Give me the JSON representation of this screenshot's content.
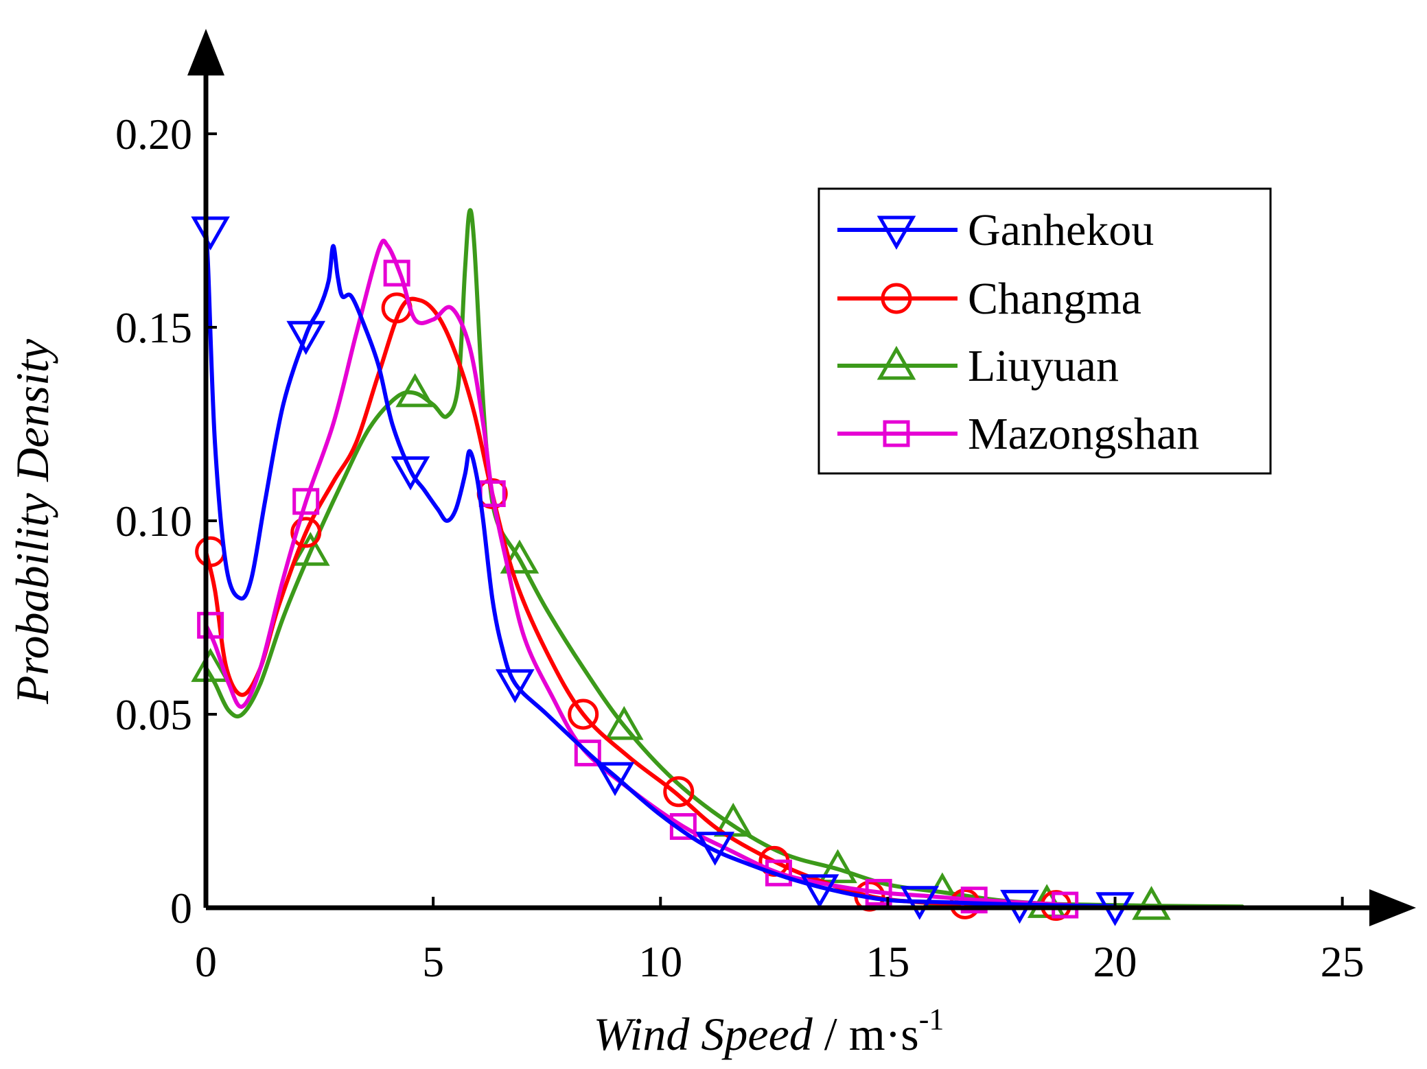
{
  "chart_data": {
    "type": "line",
    "title": "",
    "xlabel": "Wind Speed / m·s-1",
    "xlabel_parts": {
      "italic": "Wind Speed",
      "unit": " / m·s",
      "superscript": "-1"
    },
    "ylabel": "Probability Density",
    "xlim": [
      0,
      26.5
    ],
    "ylim": [
      0,
      0.225
    ],
    "xticks": [
      0,
      5,
      10,
      15,
      20,
      25
    ],
    "xtick_labels": [
      "0",
      "5",
      "10",
      "15",
      "20",
      "25"
    ],
    "yticks": [
      0,
      0.05,
      0.1,
      0.15,
      0.2
    ],
    "ytick_labels": [
      "0",
      "0.05",
      "0.10",
      "0.15",
      "0.20"
    ],
    "grid": false,
    "legend_position": "top-right",
    "series": [
      {
        "name": "Ganhekou",
        "color": "#0000ff",
        "marker": "triangle-down",
        "curve": [
          [
            0,
            0.175
          ],
          [
            0.05,
            0.165
          ],
          [
            0.2,
            0.12
          ],
          [
            0.45,
            0.088
          ],
          [
            0.75,
            0.08
          ],
          [
            1.0,
            0.085
          ],
          [
            1.3,
            0.105
          ],
          [
            1.7,
            0.13
          ],
          [
            2.2,
            0.148
          ],
          [
            2.5,
            0.155
          ],
          [
            2.7,
            0.162
          ],
          [
            2.8,
            0.171
          ],
          [
            2.9,
            0.163
          ],
          [
            3.0,
            0.158
          ],
          [
            3.2,
            0.158
          ],
          [
            3.5,
            0.15
          ],
          [
            3.8,
            0.14
          ],
          [
            4.1,
            0.125
          ],
          [
            4.5,
            0.113
          ],
          [
            4.8,
            0.108
          ],
          [
            5.1,
            0.103
          ],
          [
            5.3,
            0.1
          ],
          [
            5.5,
            0.103
          ],
          [
            5.7,
            0.112
          ],
          [
            5.8,
            0.118
          ],
          [
            5.95,
            0.112
          ],
          [
            6.1,
            0.1
          ],
          [
            6.3,
            0.08
          ],
          [
            6.5,
            0.068
          ],
          [
            6.8,
            0.058
          ],
          [
            7.5,
            0.05
          ],
          [
            8.5,
            0.039
          ],
          [
            9.0,
            0.034
          ],
          [
            10.0,
            0.024
          ],
          [
            11.0,
            0.016
          ],
          [
            12.0,
            0.011
          ],
          [
            13.0,
            0.007
          ],
          [
            14.0,
            0.004
          ],
          [
            15.0,
            0.002
          ],
          [
            16.0,
            0.0015
          ],
          [
            18.0,
            0.0008
          ],
          [
            20.0,
            0.0004
          ]
        ],
        "markers": [
          [
            0.1,
            0.175
          ],
          [
            2.2,
            0.148
          ],
          [
            4.5,
            0.113
          ],
          [
            6.8,
            0.058
          ],
          [
            9.0,
            0.034
          ],
          [
            11.2,
            0.016
          ],
          [
            13.5,
            0.005
          ],
          [
            15.7,
            0.002
          ],
          [
            17.9,
            0.001
          ],
          [
            20.0,
            0.0004
          ]
        ]
      },
      {
        "name": "Changma",
        "color": "#ff0000",
        "marker": "circle",
        "curve": [
          [
            0,
            0.092
          ],
          [
            0.2,
            0.082
          ],
          [
            0.45,
            0.062
          ],
          [
            0.8,
            0.055
          ],
          [
            1.2,
            0.062
          ],
          [
            1.6,
            0.078
          ],
          [
            2.2,
            0.097
          ],
          [
            2.8,
            0.11
          ],
          [
            3.3,
            0.12
          ],
          [
            3.8,
            0.138
          ],
          [
            4.3,
            0.155
          ],
          [
            4.7,
            0.157
          ],
          [
            5.1,
            0.153
          ],
          [
            5.5,
            0.143
          ],
          [
            5.9,
            0.128
          ],
          [
            6.3,
            0.107
          ],
          [
            6.8,
            0.085
          ],
          [
            7.5,
            0.066
          ],
          [
            8.3,
            0.05
          ],
          [
            9.3,
            0.039
          ],
          [
            10.3,
            0.03
          ],
          [
            11.3,
            0.02
          ],
          [
            12.5,
            0.012
          ],
          [
            13.5,
            0.007
          ],
          [
            14.6,
            0.003
          ],
          [
            15.6,
            0.0015
          ],
          [
            16.7,
            0.001
          ],
          [
            18.7,
            0.0006
          ],
          [
            19.0,
            0.0005
          ]
        ],
        "markers": [
          [
            0.1,
            0.092
          ],
          [
            2.2,
            0.097
          ],
          [
            4.2,
            0.155
          ],
          [
            6.3,
            0.107
          ],
          [
            8.3,
            0.05
          ],
          [
            10.4,
            0.03
          ],
          [
            12.5,
            0.012
          ],
          [
            14.6,
            0.003
          ],
          [
            16.7,
            0.001
          ],
          [
            18.7,
            0.0006
          ]
        ]
      },
      {
        "name": "Liuyuan",
        "color": "#3c9a1a",
        "marker": "triangle-up",
        "curve": [
          [
            0,
            0.062
          ],
          [
            0.2,
            0.058
          ],
          [
            0.5,
            0.051
          ],
          [
            0.8,
            0.05
          ],
          [
            1.2,
            0.058
          ],
          [
            1.7,
            0.075
          ],
          [
            2.3,
            0.092
          ],
          [
            3.0,
            0.11
          ],
          [
            3.6,
            0.124
          ],
          [
            4.2,
            0.132
          ],
          [
            4.6,
            0.133
          ],
          [
            5.0,
            0.13
          ],
          [
            5.3,
            0.127
          ],
          [
            5.55,
            0.135
          ],
          [
            5.7,
            0.165
          ],
          [
            5.8,
            0.18
          ],
          [
            5.9,
            0.172
          ],
          [
            6.05,
            0.14
          ],
          [
            6.2,
            0.115
          ],
          [
            6.4,
            0.1
          ],
          [
            6.9,
            0.09
          ],
          [
            7.5,
            0.077
          ],
          [
            8.3,
            0.062
          ],
          [
            9.2,
            0.047
          ],
          [
            10.3,
            0.033
          ],
          [
            11.5,
            0.022
          ],
          [
            12.7,
            0.014
          ],
          [
            13.9,
            0.01
          ],
          [
            15.0,
            0.006
          ],
          [
            16.2,
            0.004
          ],
          [
            17.4,
            0.002
          ],
          [
            18.6,
            0.001
          ],
          [
            20.0,
            0.0007
          ],
          [
            21.0,
            0.0005
          ],
          [
            22.8,
            0.0003
          ]
        ],
        "markers": [
          [
            0.1,
            0.062
          ],
          [
            2.3,
            0.092
          ],
          [
            4.6,
            0.133
          ],
          [
            6.9,
            0.09
          ],
          [
            9.2,
            0.047
          ],
          [
            11.6,
            0.022
          ],
          [
            13.9,
            0.01
          ],
          [
            16.2,
            0.004
          ],
          [
            18.5,
            0.001
          ],
          [
            20.8,
            0.0005
          ]
        ]
      },
      {
        "name": "Mazongshan",
        "color": "#e600d4",
        "marker": "square",
        "curve": [
          [
            0,
            0.073
          ],
          [
            0.2,
            0.068
          ],
          [
            0.5,
            0.058
          ],
          [
            0.8,
            0.052
          ],
          [
            1.2,
            0.062
          ],
          [
            1.7,
            0.085
          ],
          [
            2.2,
            0.105
          ],
          [
            2.8,
            0.125
          ],
          [
            3.3,
            0.148
          ],
          [
            3.8,
            0.17
          ],
          [
            4.0,
            0.171
          ],
          [
            4.3,
            0.163
          ],
          [
            4.6,
            0.152
          ],
          [
            5.0,
            0.152
          ],
          [
            5.4,
            0.155
          ],
          [
            5.8,
            0.145
          ],
          [
            6.1,
            0.125
          ],
          [
            6.3,
            0.107
          ],
          [
            6.6,
            0.09
          ],
          [
            7.0,
            0.07
          ],
          [
            7.6,
            0.055
          ],
          [
            8.3,
            0.041
          ],
          [
            9.4,
            0.03
          ],
          [
            10.5,
            0.021
          ],
          [
            11.5,
            0.015
          ],
          [
            12.6,
            0.009
          ],
          [
            13.7,
            0.006
          ],
          [
            14.8,
            0.004
          ],
          [
            15.9,
            0.003
          ],
          [
            17.0,
            0.002
          ],
          [
            19.0,
            0.0007
          ]
        ],
        "markers": [
          [
            0.1,
            0.073
          ],
          [
            2.2,
            0.105
          ],
          [
            4.2,
            0.164
          ],
          [
            6.3,
            0.107
          ],
          [
            8.4,
            0.04
          ],
          [
            10.5,
            0.021
          ],
          [
            12.6,
            0.009
          ],
          [
            14.8,
            0.004
          ],
          [
            16.9,
            0.002
          ],
          [
            18.9,
            0.0007
          ]
        ]
      }
    ]
  }
}
